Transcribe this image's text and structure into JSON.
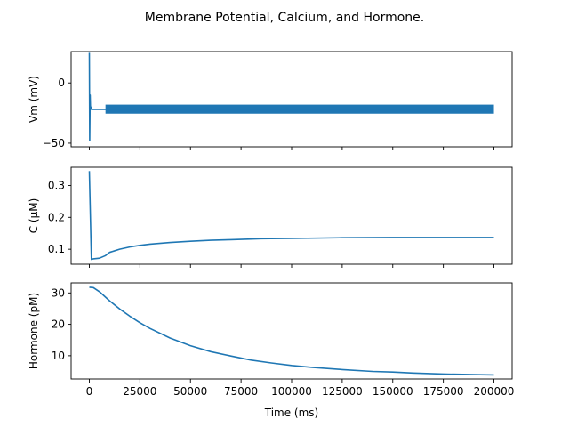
{
  "figure": {
    "suptitle": "Membrane Potential, Calcium, and Hormone.",
    "xlabel": "Time (ms)",
    "series_color": "#1f77b4"
  },
  "chart_data": [
    {
      "type": "line",
      "ylabel": "Vm (mV)",
      "xlim": [
        -9000,
        209000
      ],
      "ylim": [
        -53,
        26
      ],
      "yticks": [
        -50,
        0
      ],
      "ytick_labels": [
        "−50",
        "0"
      ],
      "show_xticklabels": false,
      "series": [
        {
          "x": [
            0,
            200,
            400,
            600,
            800,
            1200,
            2000,
            4000,
            6000,
            7500,
            9000,
            200000
          ],
          "y": [
            25,
            -48,
            -10,
            -22,
            -20,
            -22,
            -22,
            -22,
            -22,
            -22,
            -22,
            -22
          ]
        }
      ],
      "band": {
        "x_start": 8000,
        "x_end": 200000,
        "y_low": -25.5,
        "y_high": -18
      }
    },
    {
      "type": "line",
      "ylabel": "C (μM)",
      "xlim": [
        -9000,
        209000
      ],
      "ylim": [
        0.053,
        0.357
      ],
      "yticks": [
        0.1,
        0.2,
        0.3
      ],
      "ytick_labels": [
        "0.1",
        "0.2",
        "0.3"
      ],
      "show_xticklabels": false,
      "series": [
        {
          "x": [
            0,
            1000,
            2000,
            5000,
            8000,
            10000,
            15000,
            20000,
            25000,
            30000,
            40000,
            50000,
            60000,
            70000,
            85000,
            100000,
            125000,
            150000,
            175000,
            200000
          ],
          "y": [
            0.345,
            0.068,
            0.07,
            0.072,
            0.08,
            0.09,
            0.1,
            0.107,
            0.112,
            0.116,
            0.121,
            0.125,
            0.128,
            0.13,
            0.133,
            0.134,
            0.136,
            0.137,
            0.137,
            0.137
          ]
        }
      ]
    },
    {
      "type": "line",
      "ylabel": "Hormone (pM)",
      "xlim": [
        -9000,
        209000
      ],
      "ylim": [
        2.6,
        33.2
      ],
      "yticks": [
        10,
        20,
        30
      ],
      "ytick_labels": [
        "10",
        "20",
        "30"
      ],
      "show_xticklabels": true,
      "xticks": [
        0,
        25000,
        50000,
        75000,
        100000,
        125000,
        150000,
        175000,
        200000
      ],
      "xtick_labels": [
        "0",
        "25000",
        "50000",
        "75000",
        "100000",
        "125000",
        "150000",
        "175000",
        "200000"
      ],
      "series": [
        {
          "x": [
            0,
            2000,
            5000,
            10000,
            15000,
            20000,
            25000,
            30000,
            40000,
            50000,
            60000,
            70000,
            80000,
            90000,
            100000,
            110000,
            125000,
            140000,
            150000,
            160000,
            175000,
            190000,
            200000
          ],
          "y": [
            31.8,
            31.7,
            30.4,
            27.5,
            24.9,
            22.6,
            20.5,
            18.7,
            15.6,
            13.2,
            11.3,
            9.9,
            8.6,
            7.7,
            6.9,
            6.3,
            5.6,
            5.0,
            4.8,
            4.5,
            4.2,
            4.0,
            3.9
          ]
        }
      ]
    }
  ]
}
